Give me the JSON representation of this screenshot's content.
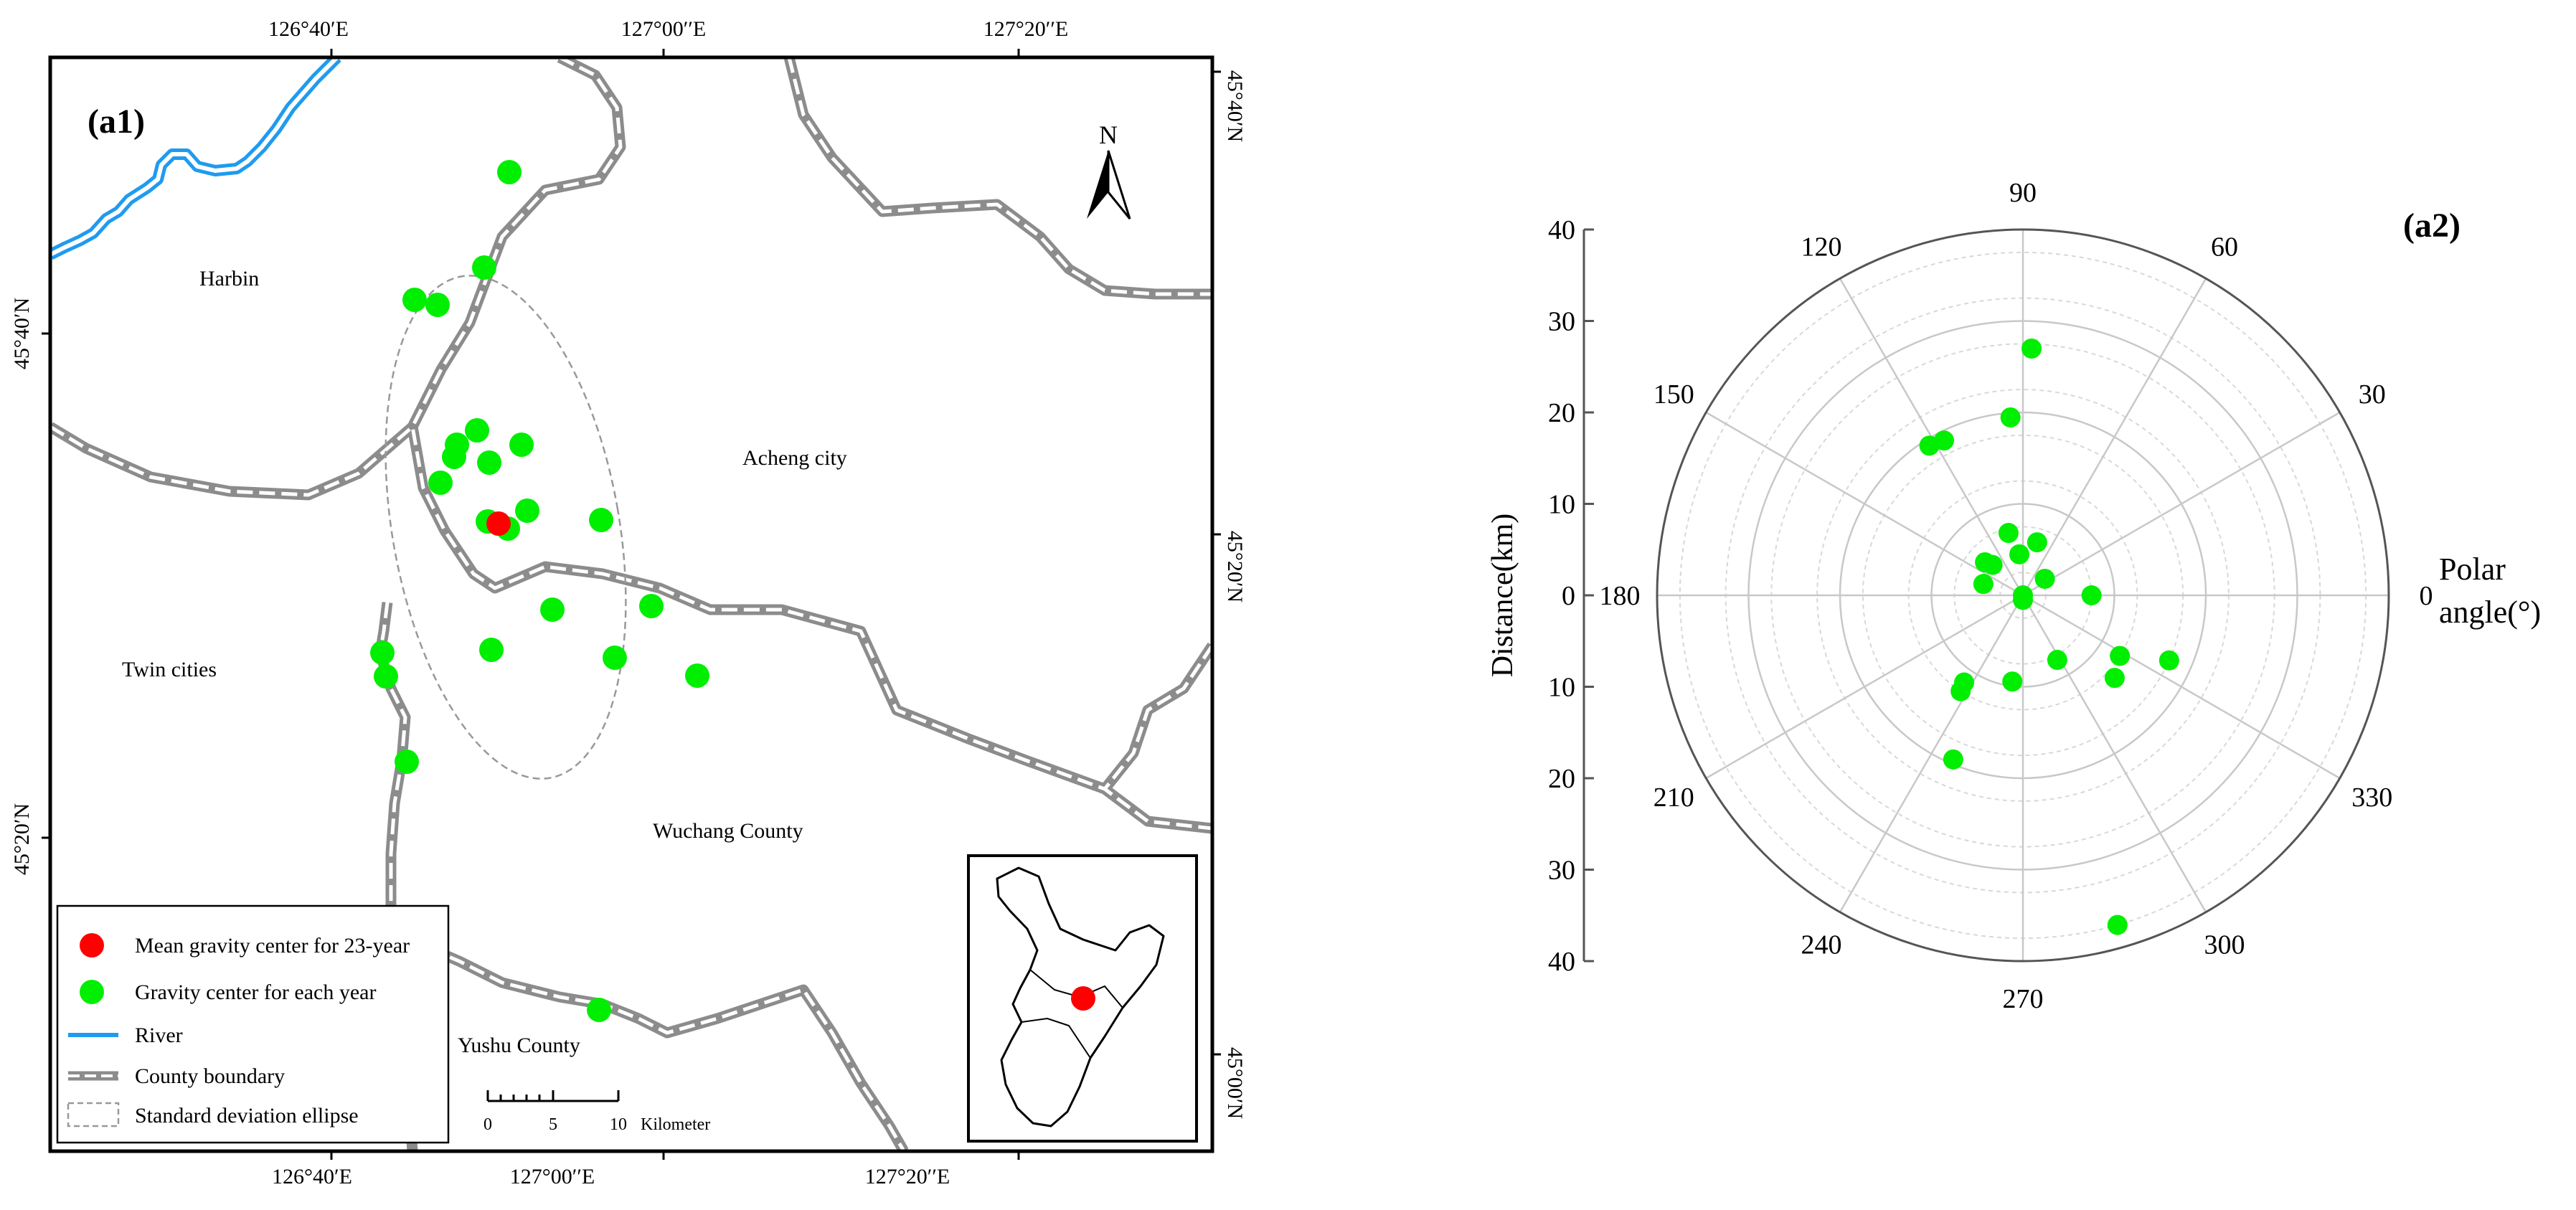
{
  "map_panel": {
    "panel_label": "(a1)",
    "top_ticks": [
      "126°40′E",
      "127°00′′E",
      "127°20′′E"
    ],
    "bottom_ticks": [
      "126°40′E",
      "127°00′′E",
      "127°20′′E"
    ],
    "left_ticks": [
      "45°40′N",
      "45°20′N"
    ],
    "right_ticks": [
      "45°40′N",
      "45°20′N",
      "45°00′N"
    ],
    "north_label": "N",
    "places": {
      "harbin": "Harbin",
      "acheng": "Acheng city",
      "twin": "Twin cities",
      "wuchang": "Wuchang County",
      "yushu": "Yushu County"
    },
    "scale_bar": {
      "ticks": [
        "0",
        "5",
        "10"
      ],
      "unit": "Kilometer"
    },
    "legend": {
      "mean": "Mean gravity center for 23-year",
      "each": "Gravity center for each year",
      "river": "River",
      "boundary": "County boundary",
      "ellipse": "Standard deviation ellipse"
    },
    "colors": {
      "mean_center": "#ff0000",
      "yearly_center": "#00ee00",
      "river": "#1f9bf0",
      "boundary": "#808080"
    }
  },
  "chart_data": {
    "type": "scatter",
    "subtype": "polar",
    "panel_label": "(a2)",
    "radial_axis": {
      "label": "Distance(km)",
      "range": [
        0,
        40
      ],
      "ticks": [
        40,
        30,
        20,
        10,
        0,
        10,
        20,
        30,
        40
      ]
    },
    "angular_axis": {
      "label_line1": "Polar",
      "label_line2": "angle(°)",
      "ticks_deg": [
        0,
        30,
        60,
        90,
        120,
        150,
        180,
        210,
        240,
        270,
        300,
        330
      ]
    },
    "grid": true,
    "point_color": "#00ee00",
    "points": [
      {
        "theta": 88,
        "r": 27
      },
      {
        "theta": 94,
        "r": 19.5
      },
      {
        "theta": 117,
        "r": 19
      },
      {
        "theta": 122,
        "r": 19.3
      },
      {
        "theta": 103,
        "r": 7
      },
      {
        "theta": 75,
        "r": 6
      },
      {
        "theta": 139,
        "r": 5.5
      },
      {
        "theta": 135,
        "r": 4.7
      },
      {
        "theta": 95,
        "r": 4.5
      },
      {
        "theta": 164,
        "r": 4.5
      },
      {
        "theta": 37,
        "r": 3
      },
      {
        "theta": 90,
        "r": 0
      },
      {
        "theta": 270,
        "r": 0.5
      },
      {
        "theta": 0,
        "r": 7.5
      },
      {
        "theta": 298,
        "r": 8
      },
      {
        "theta": 328,
        "r": 12.5
      },
      {
        "theta": 318,
        "r": 13.5
      },
      {
        "theta": 336,
        "r": 17.5
      },
      {
        "theta": 263,
        "r": 9.5
      },
      {
        "theta": 236,
        "r": 11.5
      },
      {
        "theta": 237,
        "r": 12.5
      },
      {
        "theta": 247,
        "r": 19.5
      },
      {
        "theta": 286,
        "r": 37.5
      }
    ]
  }
}
